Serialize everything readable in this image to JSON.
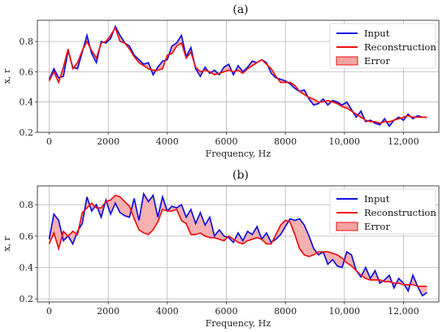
{
  "chart_data": [
    {
      "type": "line",
      "title": "(a)",
      "xlabel": "Frequency, Hz",
      "ylabel": "x, r",
      "xlim": [
        -400,
        13200
      ],
      "ylim": [
        0.2,
        0.94
      ],
      "xticks": [
        0,
        2000,
        4000,
        6000,
        8000,
        10000,
        12000
      ],
      "xtick_labels": [
        "0",
        "2000",
        "4000",
        "6000",
        "8000",
        "10,000",
        "12,000"
      ],
      "yticks": [
        0.2,
        0.4,
        0.6,
        0.8
      ],
      "ytick_labels": [
        "0.2",
        "0.4",
        "0.6",
        "0.8"
      ],
      "grid": true,
      "legend_position": "top-right",
      "legend": [
        "Input",
        "Reconstruction",
        "Error"
      ],
      "colors": {
        "input": "#1010e0",
        "reconstruction": "#ee1111",
        "error": "#f4a3a3"
      },
      "x": [
        0,
        160,
        320,
        480,
        640,
        800,
        960,
        1120,
        1280,
        1440,
        1600,
        1760,
        1920,
        2080,
        2240,
        2400,
        2560,
        2720,
        2880,
        3040,
        3200,
        3360,
        3520,
        3680,
        3840,
        4000,
        4160,
        4320,
        4480,
        4640,
        4800,
        4960,
        5120,
        5280,
        5440,
        5600,
        5760,
        5920,
        6080,
        6240,
        6400,
        6560,
        6720,
        6880,
        7040,
        7200,
        7360,
        7520,
        7680,
        7840,
        8000,
        8160,
        8320,
        8480,
        8640,
        8800,
        8960,
        9120,
        9280,
        9440,
        9600,
        9760,
        9920,
        10080,
        10240,
        10400,
        10560,
        10720,
        10880,
        11040,
        11200,
        11360,
        11520,
        11680,
        11840,
        12000,
        12160,
        12320,
        12480,
        12640,
        12800
      ],
      "series": [
        {
          "name": "Input",
          "values": [
            0.55,
            0.62,
            0.56,
            0.57,
            0.74,
            0.63,
            0.62,
            0.73,
            0.84,
            0.72,
            0.66,
            0.8,
            0.79,
            0.82,
            0.9,
            0.84,
            0.79,
            0.77,
            0.71,
            0.68,
            0.65,
            0.66,
            0.58,
            0.63,
            0.67,
            0.68,
            0.77,
            0.79,
            0.84,
            0.7,
            0.76,
            0.62,
            0.57,
            0.63,
            0.59,
            0.61,
            0.58,
            0.63,
            0.65,
            0.58,
            0.64,
            0.6,
            0.63,
            0.67,
            0.66,
            0.68,
            0.66,
            0.59,
            0.56,
            0.55,
            0.54,
            0.52,
            0.49,
            0.47,
            0.48,
            0.42,
            0.38,
            0.39,
            0.42,
            0.38,
            0.41,
            0.4,
            0.38,
            0.4,
            0.35,
            0.3,
            0.34,
            0.27,
            0.28,
            0.26,
            0.25,
            0.29,
            0.24,
            0.28,
            0.3,
            0.28,
            0.32,
            0.29,
            0.31,
            0.3,
            0.3
          ]
        },
        {
          "name": "Reconstruction",
          "values": [
            0.54,
            0.6,
            0.53,
            0.63,
            0.75,
            0.62,
            0.66,
            0.74,
            0.8,
            0.74,
            0.69,
            0.79,
            0.8,
            0.84,
            0.89,
            0.8,
            0.79,
            0.75,
            0.7,
            0.66,
            0.64,
            0.62,
            0.61,
            0.61,
            0.62,
            0.71,
            0.72,
            0.77,
            0.79,
            0.69,
            0.73,
            0.63,
            0.6,
            0.61,
            0.6,
            0.58,
            0.59,
            0.6,
            0.61,
            0.6,
            0.61,
            0.59,
            0.62,
            0.64,
            0.66,
            0.68,
            0.65,
            0.62,
            0.57,
            0.53,
            0.53,
            0.53,
            0.51,
            0.47,
            0.45,
            0.43,
            0.42,
            0.4,
            0.4,
            0.41,
            0.4,
            0.39,
            0.37,
            0.36,
            0.34,
            0.32,
            0.3,
            0.28,
            0.27,
            0.27,
            0.26,
            0.27,
            0.27,
            0.28,
            0.29,
            0.3,
            0.31,
            0.3,
            0.3,
            0.3,
            0.3
          ]
        }
      ]
    },
    {
      "type": "line",
      "title": "(b)",
      "xlabel": "Frequency, Hz",
      "ylabel": "x, r",
      "xlim": [
        -400,
        13200
      ],
      "ylim": [
        0.18,
        0.92
      ],
      "xticks": [
        0,
        2000,
        4000,
        6000,
        8000,
        10000,
        12000
      ],
      "xtick_labels": [
        "0",
        "2000",
        "4000",
        "6000",
        "8000",
        "10,000",
        "12,000"
      ],
      "yticks": [
        0.2,
        0.4,
        0.6,
        0.8
      ],
      "ytick_labels": [
        "0.2",
        "0.4",
        "0.6",
        "0.8"
      ],
      "grid": true,
      "legend_position": "top-right",
      "legend": [
        "Input",
        "Reconstruction",
        "Error"
      ],
      "colors": {
        "input": "#1010e0",
        "reconstruction": "#ee1111",
        "error": "#f4a3a3"
      },
      "x": [
        0,
        160,
        320,
        480,
        640,
        800,
        960,
        1120,
        1280,
        1440,
        1600,
        1760,
        1920,
        2080,
        2240,
        2400,
        2560,
        2720,
        2880,
        3040,
        3200,
        3360,
        3520,
        3680,
        3840,
        4000,
        4160,
        4320,
        4480,
        4640,
        4800,
        4960,
        5120,
        5280,
        5440,
        5600,
        5760,
        5920,
        6080,
        6240,
        6400,
        6560,
        6720,
        6880,
        7040,
        7200,
        7360,
        7520,
        7680,
        7840,
        8000,
        8160,
        8320,
        8480,
        8640,
        8800,
        8960,
        9120,
        9280,
        9440,
        9600,
        9760,
        9920,
        10080,
        10240,
        10400,
        10560,
        10720,
        10880,
        11040,
        11200,
        11360,
        11520,
        11680,
        11840,
        12000,
        12160,
        12320,
        12480,
        12640,
        12800
      ],
      "series": [
        {
          "name": "Input",
          "values": [
            0.58,
            0.74,
            0.7,
            0.57,
            0.6,
            0.55,
            0.63,
            0.68,
            0.85,
            0.76,
            0.8,
            0.72,
            0.83,
            0.74,
            0.81,
            0.75,
            0.73,
            0.72,
            0.84,
            0.7,
            0.87,
            0.82,
            0.86,
            0.72,
            0.85,
            0.76,
            0.79,
            0.78,
            0.8,
            0.72,
            0.77,
            0.68,
            0.75,
            0.67,
            0.72,
            0.6,
            0.64,
            0.6,
            0.59,
            0.56,
            0.62,
            0.57,
            0.63,
            0.61,
            0.66,
            0.58,
            0.62,
            0.56,
            0.58,
            0.61,
            0.66,
            0.71,
            0.7,
            0.71,
            0.67,
            0.6,
            0.52,
            0.48,
            0.5,
            0.42,
            0.45,
            0.41,
            0.4,
            0.5,
            0.48,
            0.38,
            0.34,
            0.4,
            0.33,
            0.38,
            0.3,
            0.32,
            0.35,
            0.27,
            0.33,
            0.3,
            0.25,
            0.35,
            0.28,
            0.22,
            0.24
          ]
        },
        {
          "name": "Reconstruction",
          "values": [
            0.55,
            0.62,
            0.52,
            0.63,
            0.6,
            0.63,
            0.61,
            0.75,
            0.78,
            0.81,
            0.78,
            0.78,
            0.82,
            0.83,
            0.86,
            0.85,
            0.82,
            0.79,
            0.71,
            0.64,
            0.62,
            0.61,
            0.64,
            0.69,
            0.77,
            0.76,
            0.76,
            0.77,
            0.7,
            0.68,
            0.61,
            0.61,
            0.62,
            0.6,
            0.59,
            0.59,
            0.58,
            0.57,
            0.6,
            0.58,
            0.56,
            0.55,
            0.57,
            0.58,
            0.59,
            0.58,
            0.55,
            0.55,
            0.61,
            0.67,
            0.7,
            0.69,
            0.61,
            0.52,
            0.48,
            0.47,
            0.48,
            0.5,
            0.5,
            0.5,
            0.49,
            0.48,
            0.46,
            0.43,
            0.41,
            0.38,
            0.35,
            0.33,
            0.32,
            0.32,
            0.32,
            0.31,
            0.31,
            0.3,
            0.3,
            0.29,
            0.29,
            0.29,
            0.28,
            0.28,
            0.28
          ]
        }
      ]
    }
  ]
}
